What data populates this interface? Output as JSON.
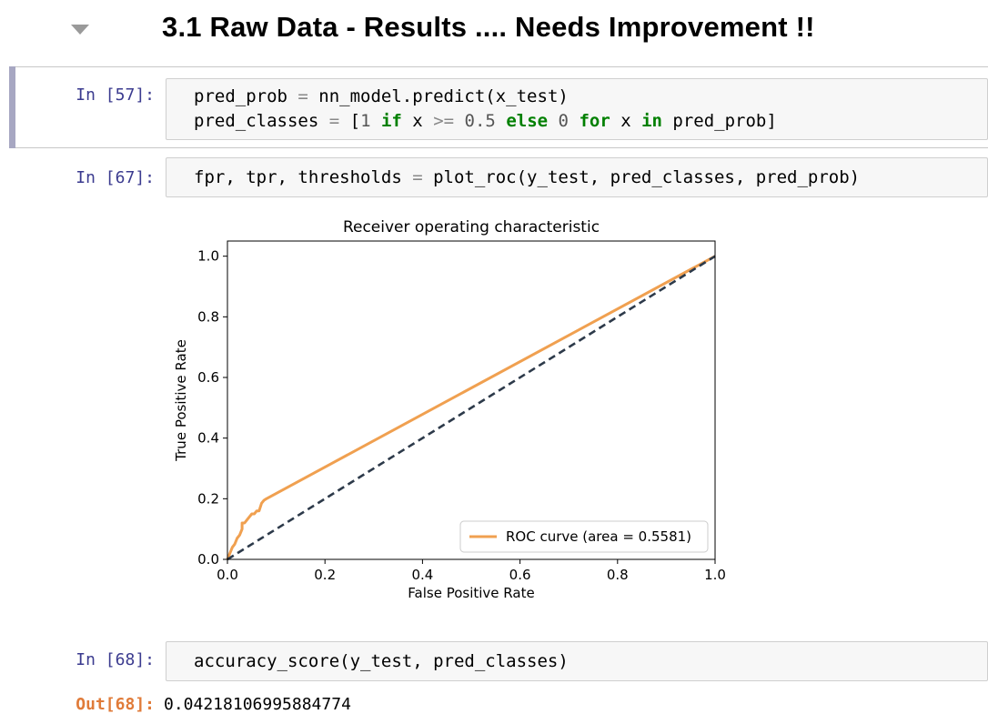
{
  "heading": "3.1  Raw Data - Results .... Needs Improvement !!",
  "cells": [
    {
      "prompt": "In [57]:",
      "lines": [
        [
          {
            "t": "pred_prob "
          },
          {
            "t": "=",
            "c": "op"
          },
          {
            "t": " nn_model.predict(x_test)"
          }
        ],
        [
          {
            "t": "pred_classes "
          },
          {
            "t": "=",
            "c": "op"
          },
          {
            "t": " ["
          },
          {
            "t": "1",
            "c": "num"
          },
          {
            "t": " "
          },
          {
            "t": "if",
            "c": "kw"
          },
          {
            "t": " x "
          },
          {
            "t": ">=",
            "c": "op"
          },
          {
            "t": " "
          },
          {
            "t": "0.5",
            "c": "num"
          },
          {
            "t": " "
          },
          {
            "t": "else",
            "c": "kw"
          },
          {
            "t": " "
          },
          {
            "t": "0",
            "c": "num"
          },
          {
            "t": " "
          },
          {
            "t": "for",
            "c": "kw"
          },
          {
            "t": " x "
          },
          {
            "t": "in",
            "c": "kw"
          },
          {
            "t": " pred_prob]"
          }
        ]
      ]
    },
    {
      "prompt": "In [67]:",
      "lines": [
        [
          {
            "t": "fpr, tpr, thresholds "
          },
          {
            "t": "=",
            "c": "op"
          },
          {
            "t": " plot_roc(y_test, pred_classes, pred_prob)"
          }
        ]
      ]
    },
    {
      "prompt": "In [68]:",
      "lines": [
        [
          {
            "t": "accuracy_score(y_test, pred_classes)"
          }
        ]
      ]
    }
  ],
  "output": {
    "prompt": "Out[68]:",
    "value": "0.04218106995884774"
  },
  "chart_data": {
    "type": "line",
    "title": "Receiver operating characteristic",
    "xlabel": "False Positive Rate",
    "ylabel": "True Positive Rate",
    "xlim": [
      0.0,
      1.0
    ],
    "ylim": [
      0.0,
      1.05
    ],
    "xticks": [
      "0.0",
      "0.2",
      "0.4",
      "0.6",
      "0.8",
      "1.0"
    ],
    "yticks": [
      "0.0",
      "0.2",
      "0.4",
      "0.6",
      "0.8",
      "1.0"
    ],
    "grid": false,
    "legend_position": "lower-right",
    "series": [
      {
        "name": "ROC curve (area = 0.5581)",
        "color": "#f0a050",
        "style": "solid",
        "x": [
          0.0,
          0.005,
          0.01,
          0.015,
          0.02,
          0.025,
          0.03,
          0.03,
          0.035,
          0.04,
          0.045,
          0.05,
          0.055,
          0.06,
          0.065,
          0.07,
          0.075,
          0.08,
          1.0
        ],
        "y": [
          0.0,
          0.02,
          0.04,
          0.05,
          0.07,
          0.08,
          0.1,
          0.12,
          0.12,
          0.13,
          0.14,
          0.15,
          0.15,
          0.16,
          0.16,
          0.185,
          0.195,
          0.2,
          1.0
        ]
      },
      {
        "name": "",
        "color": "#2d3a4a",
        "style": "dashed",
        "x": [
          0.0,
          1.0
        ],
        "y": [
          0.0,
          1.0
        ]
      }
    ]
  }
}
